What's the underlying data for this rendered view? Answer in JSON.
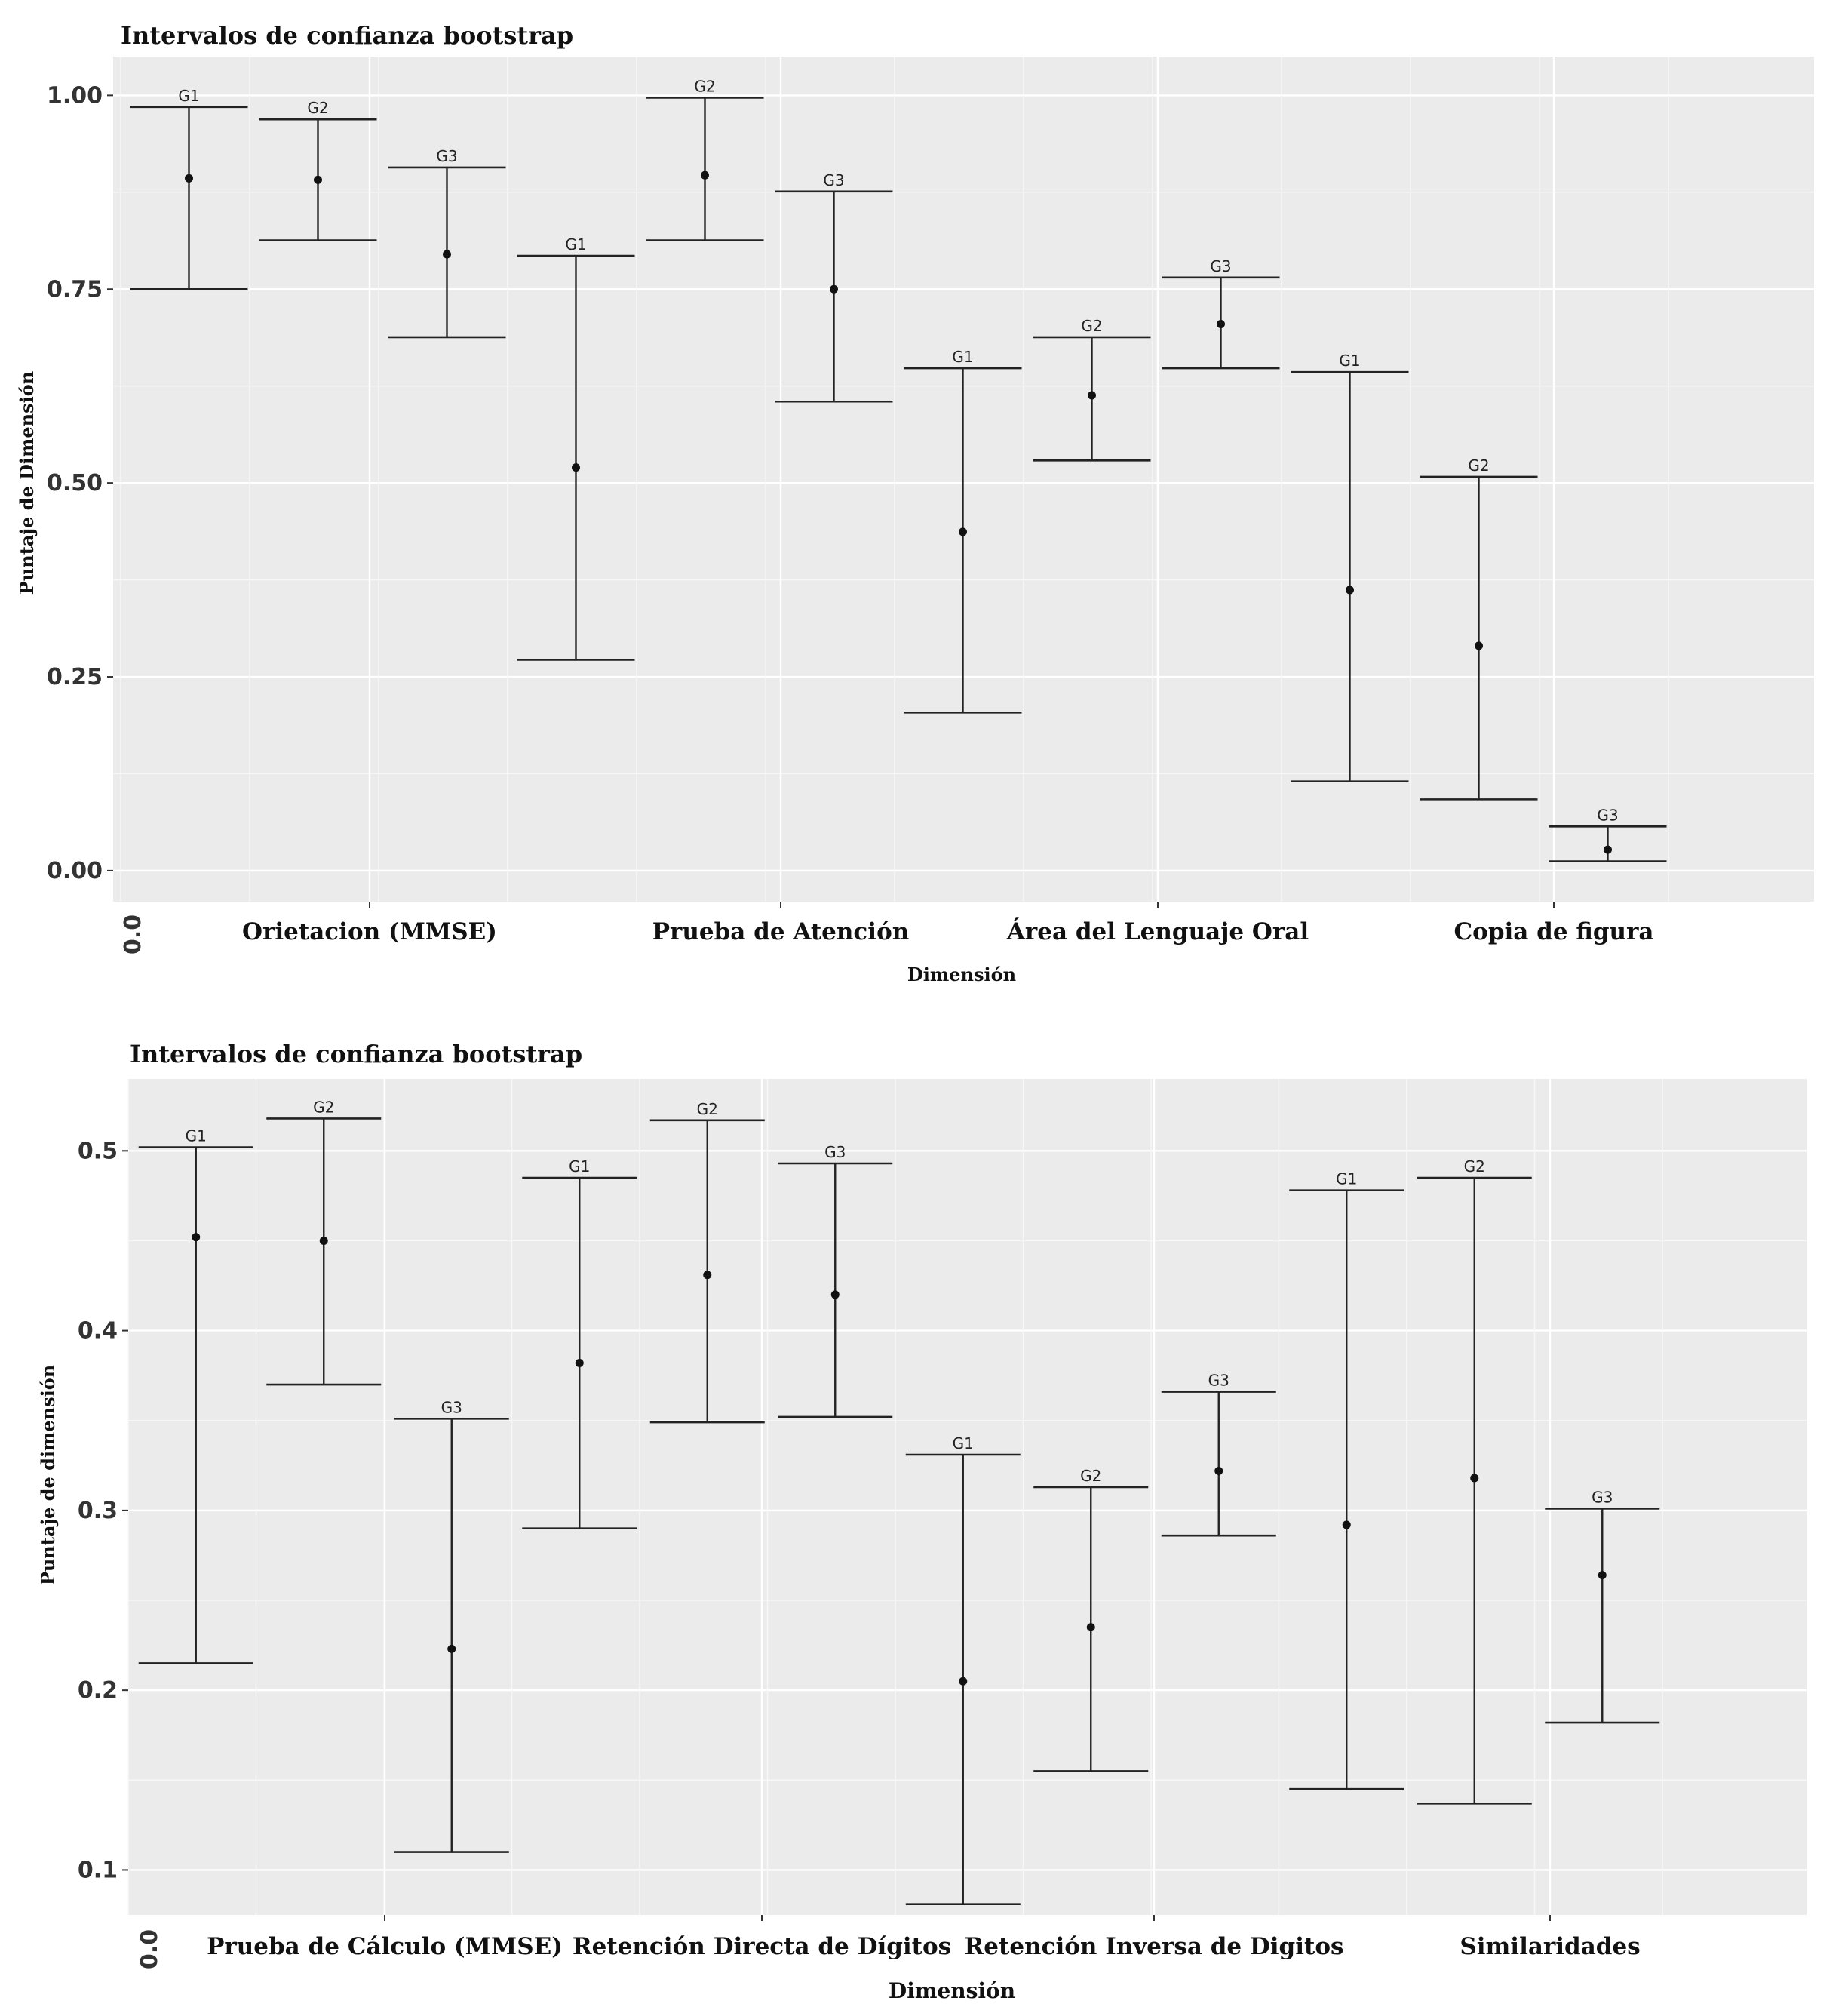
{
  "chart_data": [
    {
      "type": "errorbar",
      "title": "Intervalos de confianza bootstrap",
      "xlabel": "Dimensión",
      "ylabel": "Puntaje de Dimensión",
      "ylim": [
        -0.04,
        1.05
      ],
      "yticks": [
        0.0,
        0.25,
        0.5,
        0.75,
        1.0
      ],
      "ytick_labels": [
        "0.00",
        "0.25",
        "0.50",
        "0.75",
        "1.00"
      ],
      "x_origin_label": "0.0",
      "grid": true,
      "categories": [
        "Orietacion (MMSE)",
        "Prueba de Atención",
        "Área del Lenguaje Oral",
        "Copia de figura"
      ],
      "intervals": [
        {
          "category": "Orietacion (MMSE)",
          "group": "G1",
          "lower": 0.75,
          "estimate": 0.893,
          "upper": 0.985
        },
        {
          "category": "Orietacion (MMSE)",
          "group": "G2",
          "lower": 0.813,
          "estimate": 0.891,
          "upper": 0.969
        },
        {
          "category": "Orietacion (MMSE)",
          "group": "G3",
          "lower": 0.688,
          "estimate": 0.795,
          "upper": 0.907
        },
        {
          "category": "Prueba de Atención",
          "group": "G1",
          "lower": 0.272,
          "estimate": 0.52,
          "upper": 0.793
        },
        {
          "category": "Prueba de Atención",
          "group": "G2",
          "lower": 0.813,
          "estimate": 0.897,
          "upper": 0.997
        },
        {
          "category": "Prueba de Atención",
          "group": "G3",
          "lower": 0.605,
          "estimate": 0.75,
          "upper": 0.876
        },
        {
          "category": "Área del Lenguaje Oral",
          "group": "G1",
          "lower": 0.204,
          "estimate": 0.437,
          "upper": 0.648
        },
        {
          "category": "Área del Lenguaje Oral",
          "group": "G2",
          "lower": 0.529,
          "estimate": 0.613,
          "upper": 0.688
        },
        {
          "category": "Área del Lenguaje Oral",
          "group": "G3",
          "lower": 0.648,
          "estimate": 0.705,
          "upper": 0.765
        },
        {
          "category": "Copia de figura",
          "group": "G1",
          "lower": 0.115,
          "estimate": 0.362,
          "upper": 0.643
        },
        {
          "category": "Copia de figura",
          "group": "G2",
          "lower": 0.092,
          "estimate": 0.29,
          "upper": 0.508
        },
        {
          "category": "Copia de figura",
          "group": "G3",
          "lower": 0.012,
          "estimate": 0.027,
          "upper": 0.057
        }
      ]
    },
    {
      "type": "errorbar",
      "title": "Intervalos de confianza bootstrap",
      "xlabel": "Dimensión",
      "ylabel": "Puntaje de dimensión",
      "ylim": [
        0.075,
        0.54
      ],
      "yticks": [
        0.1,
        0.2,
        0.3,
        0.4,
        0.5
      ],
      "ytick_labels": [
        "0.1",
        "0.2",
        "0.3",
        "0.4",
        "0.5"
      ],
      "x_origin_label": "0.0",
      "grid": true,
      "categories": [
        "Prueba de Cálculo (MMSE)",
        "Retención Directa de Dígitos",
        "Retención Inversa de Digitos",
        "Similaridades"
      ],
      "intervals": [
        {
          "category": "Prueba de Cálculo (MMSE)",
          "group": "G1",
          "lower": 0.215,
          "estimate": 0.452,
          "upper": 0.502
        },
        {
          "category": "Prueba de Cálculo (MMSE)",
          "group": "G2",
          "lower": 0.37,
          "estimate": 0.45,
          "upper": 0.518
        },
        {
          "category": "Prueba de Cálculo (MMSE)",
          "group": "G3",
          "lower": 0.11,
          "estimate": 0.223,
          "upper": 0.351
        },
        {
          "category": "Retención Directa de Dígitos",
          "group": "G1",
          "lower": 0.29,
          "estimate": 0.382,
          "upper": 0.485
        },
        {
          "category": "Retención Directa de Dígitos",
          "group": "G2",
          "lower": 0.349,
          "estimate": 0.431,
          "upper": 0.517
        },
        {
          "category": "Retención Directa de Dígitos",
          "group": "G3",
          "lower": 0.352,
          "estimate": 0.42,
          "upper": 0.493
        },
        {
          "category": "Retención Inversa de Digitos",
          "group": "G1",
          "lower": 0.081,
          "estimate": 0.205,
          "upper": 0.331
        },
        {
          "category": "Retención Inversa de Digitos",
          "group": "G2",
          "lower": 0.155,
          "estimate": 0.235,
          "upper": 0.313
        },
        {
          "category": "Retención Inversa de Digitos",
          "group": "G3",
          "lower": 0.286,
          "estimate": 0.322,
          "upper": 0.366
        },
        {
          "category": "Similaridades",
          "group": "G1",
          "lower": 0.145,
          "estimate": 0.292,
          "upper": 0.478
        },
        {
          "category": "Similaridades",
          "group": "G2",
          "lower": 0.137,
          "estimate": 0.318,
          "upper": 0.485
        },
        {
          "category": "Similaridades",
          "group": "G3",
          "lower": 0.182,
          "estimate": 0.264,
          "upper": 0.301
        }
      ]
    }
  ]
}
